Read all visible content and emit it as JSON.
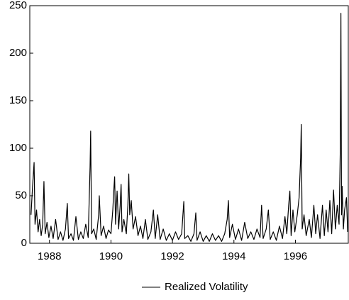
{
  "chart_data": {
    "type": "line",
    "x": [
      1987.4,
      1987.45,
      1987.5,
      1987.53,
      1987.58,
      1987.63,
      1987.68,
      1987.73,
      1987.78,
      1987.82,
      1987.86,
      1987.92,
      1987.98,
      1988.05,
      1988.12,
      1988.2,
      1988.28,
      1988.36,
      1988.44,
      1988.52,
      1988.58,
      1988.62,
      1988.7,
      1988.78,
      1988.86,
      1988.94,
      1989.02,
      1989.1,
      1989.18,
      1989.26,
      1989.32,
      1989.34,
      1989.37,
      1989.44,
      1989.52,
      1989.6,
      1989.62,
      1989.68,
      1989.76,
      1989.84,
      1989.92,
      1990.0,
      1990.06,
      1990.1,
      1990.12,
      1990.15,
      1990.2,
      1990.25,
      1990.3,
      1990.33,
      1990.36,
      1990.42,
      1990.5,
      1990.55,
      1990.58,
      1990.61,
      1990.66,
      1990.72,
      1990.8,
      1990.88,
      1990.96,
      1991.04,
      1991.12,
      1991.2,
      1991.3,
      1991.38,
      1991.44,
      1991.52,
      1991.6,
      1991.7,
      1991.8,
      1991.9,
      1992.0,
      1992.1,
      1992.2,
      1992.3,
      1992.37,
      1992.4,
      1992.5,
      1992.6,
      1992.7,
      1992.76,
      1992.8,
      1992.9,
      1993.0,
      1993.1,
      1993.2,
      1993.3,
      1993.4,
      1993.5,
      1993.6,
      1993.7,
      1993.78,
      1993.82,
      1993.86,
      1993.95,
      1994.05,
      1994.15,
      1994.25,
      1994.35,
      1994.45,
      1994.55,
      1994.65,
      1994.75,
      1994.85,
      1994.9,
      1994.95,
      1995.05,
      1995.12,
      1995.18,
      1995.28,
      1995.38,
      1995.48,
      1995.58,
      1995.66,
      1995.72,
      1995.78,
      1995.82,
      1995.86,
      1995.92,
      1995.98,
      1996.06,
      1996.12,
      1996.17,
      1996.19,
      1996.22,
      1996.28,
      1996.35,
      1996.45,
      1996.52,
      1996.6,
      1996.66,
      1996.72,
      1996.8,
      1996.88,
      1996.94,
      1997.0,
      1997.06,
      1997.12,
      1997.18,
      1997.24,
      1997.3,
      1997.36,
      1997.42,
      1997.46,
      1997.48,
      1997.5,
      1997.52,
      1997.56,
      1997.6,
      1997.66,
      1997.7
    ],
    "series": [
      {
        "name": "Realized Volatility",
        "color": "#000000",
        "values": [
          30,
          60,
          85,
          20,
          35,
          12,
          25,
          8,
          20,
          65,
          10,
          22,
          6,
          18,
          5,
          25,
          4,
          12,
          3,
          15,
          42,
          5,
          10,
          3,
          28,
          4,
          12,
          5,
          20,
          6,
          80,
          118,
          10,
          15,
          4,
          30,
          50,
          8,
          18,
          5,
          14,
          10,
          35,
          60,
          70,
          20,
          55,
          15,
          40,
          62,
          12,
          25,
          10,
          40,
          73,
          30,
          45,
          15,
          28,
          8,
          18,
          5,
          25,
          4,
          12,
          35,
          5,
          30,
          4,
          15,
          3,
          10,
          3,
          12,
          4,
          10,
          44,
          5,
          8,
          2,
          10,
          32,
          3,
          12,
          2,
          8,
          2,
          10,
          3,
          8,
          2,
          10,
          25,
          45,
          6,
          20,
          4,
          15,
          3,
          22,
          5,
          12,
          4,
          15,
          6,
          40,
          5,
          15,
          35,
          4,
          12,
          3,
          18,
          5,
          28,
          10,
          40,
          55,
          8,
          35,
          12,
          30,
          48,
          90,
          125,
          15,
          30,
          8,
          25,
          6,
          40,
          10,
          30,
          5,
          40,
          8,
          35,
          12,
          45,
          10,
          56,
          15,
          40,
          20,
          100,
          242,
          30,
          60,
          15,
          35,
          48,
          12
        ]
      }
    ],
    "xlim": [
      1987.36,
      1997.72
    ],
    "xticks": [
      1988,
      1990,
      1992,
      1994,
      1996
    ],
    "ylim": [
      0,
      250
    ],
    "yticks": [
      0,
      50,
      100,
      150,
      200,
      250
    ],
    "legend": "bottom"
  }
}
